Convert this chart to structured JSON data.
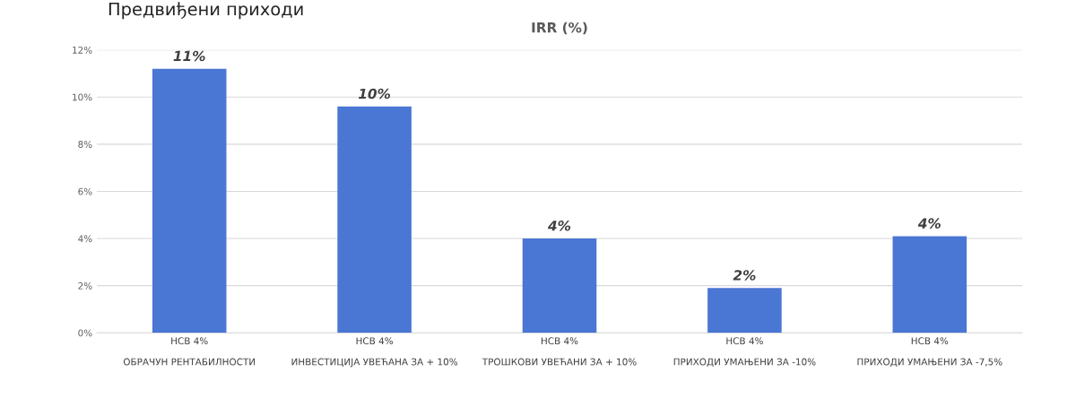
{
  "chart_data": {
    "type": "bar",
    "title": "IRR (%)",
    "categories": [
      "НСВ 4%\n\nОБРАЧУН РЕНТАБИЛНОСТИ",
      "НСВ 4%\n\nИНВЕСТИЦИЈА УВЕЋАНА ЗА + 10%",
      "НСВ 4%\n\nТРОШКОВИ УВЕЋАНИ ЗА + 10%",
      "НСВ 4%\n\nПРИХОДИ УМАЊЕНИ ЗА -10%",
      "НСВ 4%\n\nПРИХОДИ УМАЊЕНИ ЗА -7,5%"
    ],
    "values": [
      11.2,
      9.6,
      4.0,
      1.9,
      4.1
    ],
    "value_labels": [
      "11%",
      "10%",
      "4%",
      "2%",
      "4%"
    ],
    "color": "#4a76d4",
    "ylim": [
      0,
      12
    ],
    "yticks": [
      {
        "value": 0,
        "label": "0%"
      },
      {
        "value": 2,
        "label": "2%"
      },
      {
        "value": 4,
        "label": "4%"
      },
      {
        "value": 6,
        "label": "6%"
      },
      {
        "value": 8,
        "label": "8%"
      },
      {
        "value": 10,
        "label": "10%"
      },
      {
        "value": 12,
        "label": "12%"
      }
    ],
    "grid": "y",
    "annotations": [
      "Предвиђени приходи"
    ]
  }
}
